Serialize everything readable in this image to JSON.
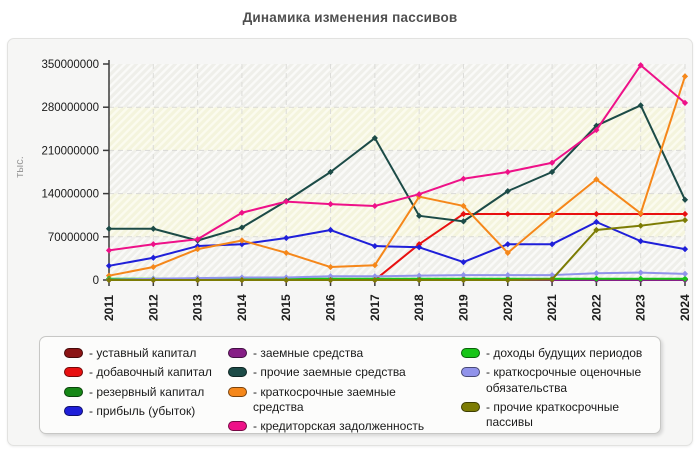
{
  "title": "Динамика изменения пассивов",
  "chart_data": {
    "type": "line",
    "title": "Динамика изменения пассивов",
    "xlabel": "",
    "ylabel": "тыс.",
    "ylim": [
      0,
      350000000
    ],
    "y_ticks": [
      0,
      70000000,
      140000000,
      210000000,
      280000000,
      350000000
    ],
    "grid": true,
    "legend_position": "bottom",
    "x": [
      "2011",
      "2012",
      "2013",
      "2014",
      "2015",
      "2016",
      "2017",
      "2018",
      "2019",
      "2020",
      "2021",
      "2022",
      "2023",
      "2024"
    ],
    "series": [
      {
        "name": "уставный капитал",
        "color": "#8b1414",
        "values": [
          1000000,
          1000000,
          1000000,
          1000000,
          1000000,
          1000000,
          1000000,
          1000000,
          1000000,
          1000000,
          1000000,
          1000000,
          1000000,
          1000000
        ]
      },
      {
        "name": "добавочный капитал",
        "color": "#e81010",
        "values": [
          0,
          0,
          0,
          0,
          0,
          0,
          0,
          58000000,
          107000000,
          107000000,
          107000000,
          107000000,
          107000000,
          107000000
        ]
      },
      {
        "name": "резервный капитал",
        "color": "#168716",
        "values": [
          400000,
          400000,
          400000,
          400000,
          400000,
          400000,
          400000,
          400000,
          400000,
          400000,
          400000,
          400000,
          400000,
          400000
        ]
      },
      {
        "name": "прибыль (убыток)",
        "color": "#1f1fd9",
        "values": [
          23000000,
          36000000,
          55000000,
          58000000,
          68000000,
          81000000,
          55000000,
          53000000,
          29000000,
          58000000,
          58000000,
          94000000,
          63000000,
          50000000
        ]
      },
      {
        "name": "заемные средства",
        "color": "#861e86",
        "values": [
          0,
          0,
          0,
          0,
          0,
          0,
          0,
          0,
          0,
          0,
          0,
          0,
          0,
          0
        ]
      },
      {
        "name": "прочие заемные средства",
        "color": "#1c4b47",
        "values": [
          83000000,
          83000000,
          64000000,
          85000000,
          128000000,
          175000000,
          230000000,
          104000000,
          95000000,
          144000000,
          175000000,
          250000000,
          283000000,
          130000000
        ]
      },
      {
        "name": "краткосрочные заемные средства",
        "color": "#f5871a",
        "values": [
          7000000,
          21000000,
          50000000,
          64000000,
          44000000,
          21000000,
          24000000,
          135000000,
          120000000,
          44000000,
          105000000,
          163000000,
          108000000,
          330000000
        ]
      },
      {
        "name": "кредиторская задолженность",
        "color": "#ee1188",
        "values": [
          48000000,
          58000000,
          66000000,
          109000000,
          127000000,
          123000000,
          120000000,
          139000000,
          164000000,
          175000000,
          190000000,
          243000000,
          348000000,
          287000000
        ]
      },
      {
        "name": "доходы будущих периодов",
        "color": "#17c517",
        "values": [
          2000000,
          2000000,
          2000000,
          2000000,
          2000000,
          2000000,
          2000000,
          2000000,
          2000000,
          2000000,
          2000000,
          2000000,
          2000000,
          2000000
        ]
      },
      {
        "name": "краткосрочные оценочные обязательства",
        "color": "#9193eb",
        "values": [
          500000,
          2000000,
          3000000,
          4000000,
          4000000,
          6000000,
          6000000,
          7000000,
          8000000,
          8000000,
          8000000,
          11000000,
          12000000,
          10000000
        ]
      },
      {
        "name": "прочие краткосрочные пассивы",
        "color": "#7c7c04",
        "values": [
          0,
          0,
          0,
          0,
          0,
          0,
          0,
          0,
          0,
          0,
          1000000,
          81000000,
          88000000,
          97000000
        ]
      }
    ]
  },
  "legend": {
    "separator": "-",
    "columns": [
      [
        0,
        1,
        2,
        3
      ],
      [
        4,
        5,
        6,
        7
      ],
      [
        8,
        9,
        10
      ]
    ]
  }
}
